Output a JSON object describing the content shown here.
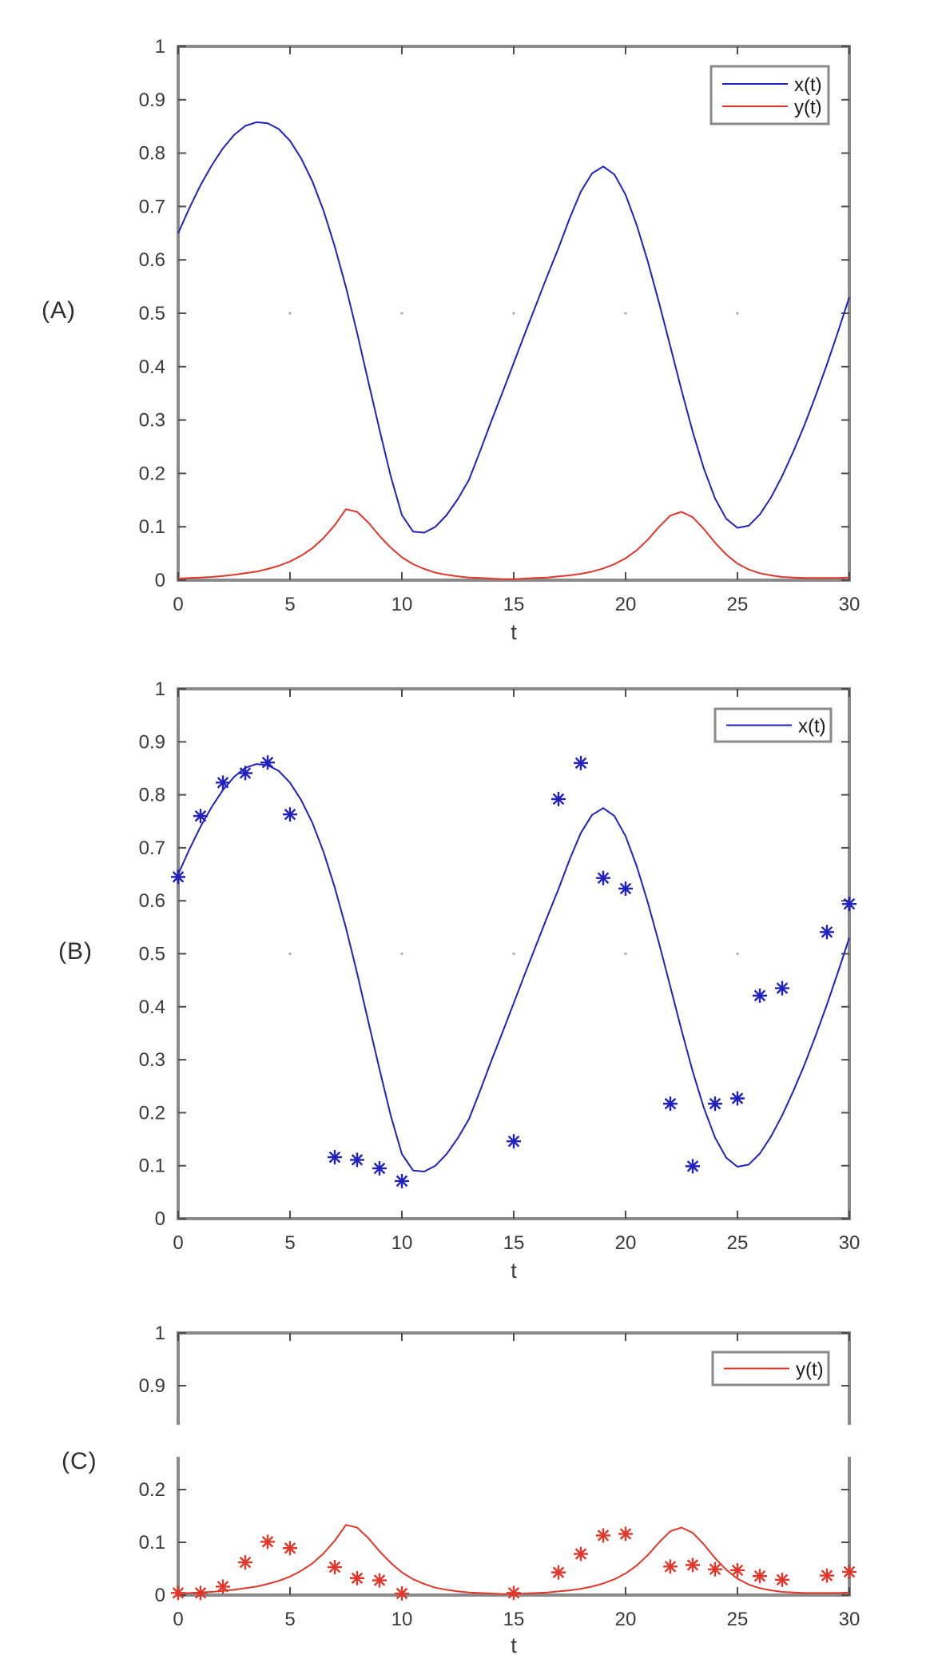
{
  "figure": {
    "background": "#ffffff",
    "axis_color": "#8a8a8a",
    "tick_color": "#4d4d4d",
    "text_color": "#3a3a3a",
    "grid_dot_color": "#a8a8a8",
    "blue": "#2121bd",
    "red": "#e1372a"
  },
  "panels": [
    {
      "label": "(A)"
    },
    {
      "label": "(B)"
    },
    {
      "label": "(C)"
    }
  ],
  "chart_data": [
    {
      "id": "A",
      "type": "line",
      "title": "",
      "xlabel": "t",
      "ylabel": "",
      "xlim": [
        0,
        30
      ],
      "ylim": [
        0,
        1
      ],
      "xticks": [
        0,
        5,
        10,
        15,
        20,
        25,
        30
      ],
      "yticks": [
        0,
        0.1,
        0.2,
        0.3,
        0.4,
        0.5,
        0.6,
        0.7,
        0.8,
        0.9,
        1
      ],
      "ytick_labels": [
        "0",
        "0.1",
        "0.2",
        "0.3",
        "0.4",
        "0.5",
        "0.6",
        "0.7",
        "0.8",
        "0.9",
        "1"
      ],
      "grid": "faint-dots-at-y0.5",
      "legend_position": "top-right",
      "legend": [
        {
          "label": "x(t)",
          "color": "#2121bd"
        },
        {
          "label": "y(t)",
          "color": "#e1372a"
        }
      ],
      "series": [
        {
          "name": "x(t)",
          "style": "line",
          "color": "#2121bd",
          "x_start": 0,
          "x_step": 0.5,
          "y": [
            0.65,
            0.697,
            0.74,
            0.777,
            0.809,
            0.834,
            0.851,
            0.858,
            0.856,
            0.845,
            0.823,
            0.79,
            0.747,
            0.692,
            0.625,
            0.549,
            0.463,
            0.372,
            0.282,
            0.195,
            0.122,
            0.091,
            0.089,
            0.1,
            0.122,
            0.152,
            0.188,
            0.242,
            0.298,
            0.352,
            0.407,
            0.462,
            0.516,
            0.57,
            0.622,
            0.678,
            0.728,
            0.762,
            0.775,
            0.76,
            0.722,
            0.665,
            0.596,
            0.519,
            0.438,
            0.356,
            0.278,
            0.209,
            0.153,
            0.115,
            0.098,
            0.102,
            0.123,
            0.155,
            0.195,
            0.241,
            0.291,
            0.346,
            0.404,
            0.466,
            0.53
          ]
        },
        {
          "name": "y(t)",
          "style": "line",
          "color": "#e1372a",
          "x_start": 0,
          "x_step": 0.5,
          "y": [
            0.003,
            0.004,
            0.005,
            0.006,
            0.008,
            0.01,
            0.013,
            0.016,
            0.021,
            0.027,
            0.035,
            0.046,
            0.06,
            0.079,
            0.103,
            0.133,
            0.128,
            0.108,
            0.083,
            0.061,
            0.043,
            0.03,
            0.021,
            0.014,
            0.01,
            0.007,
            0.005,
            0.004,
            0.003,
            0.002,
            0.002,
            0.003,
            0.004,
            0.005,
            0.007,
            0.009,
            0.012,
            0.016,
            0.022,
            0.03,
            0.041,
            0.056,
            0.076,
            0.1,
            0.121,
            0.128,
            0.118,
            0.096,
            0.07,
            0.048,
            0.031,
            0.02,
            0.013,
            0.009,
            0.006,
            0.005,
            0.004,
            0.004,
            0.004,
            0.004,
            0.005
          ]
        }
      ]
    },
    {
      "id": "B",
      "type": "line",
      "title": "",
      "xlabel": "t",
      "ylabel": "",
      "xlim": [
        0,
        30
      ],
      "ylim": [
        0,
        1
      ],
      "xticks": [
        0,
        5,
        10,
        15,
        20,
        25,
        30
      ],
      "yticks": [
        0,
        0.1,
        0.2,
        0.3,
        0.4,
        0.5,
        0.6,
        0.7,
        0.8,
        0.9,
        1
      ],
      "ytick_labels": [
        "0",
        "0.1",
        "0.2",
        "0.3",
        "0.4",
        "0.5",
        "0.6",
        "0.7",
        "0.8",
        "0.9",
        "1"
      ],
      "grid": "faint-dots-at-y0.5",
      "legend_position": "top-right",
      "legend": [
        {
          "label": "x(t)",
          "color": "#2121bd"
        }
      ],
      "series": [
        {
          "name": "x(t)",
          "style": "line",
          "color": "#2121bd",
          "x_start": 0,
          "x_step": 0.5,
          "y": [
            0.65,
            0.697,
            0.74,
            0.777,
            0.809,
            0.834,
            0.851,
            0.858,
            0.856,
            0.845,
            0.823,
            0.79,
            0.747,
            0.692,
            0.625,
            0.549,
            0.463,
            0.372,
            0.282,
            0.195,
            0.122,
            0.091,
            0.089,
            0.1,
            0.122,
            0.152,
            0.188,
            0.242,
            0.298,
            0.352,
            0.407,
            0.462,
            0.516,
            0.57,
            0.622,
            0.678,
            0.728,
            0.762,
            0.775,
            0.76,
            0.722,
            0.665,
            0.596,
            0.519,
            0.438,
            0.356,
            0.278,
            0.209,
            0.153,
            0.115,
            0.098,
            0.102,
            0.123,
            0.155,
            0.195,
            0.241,
            0.291,
            0.346,
            0.404,
            0.466,
            0.53
          ]
        },
        {
          "name": "x(t) data",
          "style": "scatter-asterisk",
          "color": "#2121bd",
          "x": [
            0,
            1,
            2,
            3,
            4,
            5,
            7,
            8,
            9,
            10,
            15,
            17,
            18,
            19,
            20,
            22,
            23,
            24,
            25,
            26,
            27,
            29,
            30
          ],
          "y": [
            0.645,
            0.76,
            0.823,
            0.841,
            0.861,
            0.763,
            0.116,
            0.111,
            0.095,
            0.071,
            0.146,
            0.792,
            0.86,
            0.643,
            0.623,
            0.217,
            0.099,
            0.217,
            0.227,
            0.421,
            0.435,
            0.541,
            0.594
          ]
        }
      ]
    },
    {
      "id": "C",
      "type": "line",
      "title": "",
      "xlabel": "t",
      "ylabel": "",
      "xlim": [
        0,
        30
      ],
      "ylim": [
        0,
        1
      ],
      "broken_y_axis": {
        "lower_range": [
          0,
          0.26
        ],
        "upper_range": [
          0.83,
          1
        ]
      },
      "xticks": [
        0,
        5,
        10,
        15,
        20,
        25,
        30
      ],
      "yticks": [
        0,
        0.1,
        0.2,
        0.9,
        1
      ],
      "ytick_labels": [
        "0",
        "0.1",
        "0.2",
        "0.9",
        "1"
      ],
      "grid": "none",
      "legend_position": "top-right",
      "legend": [
        {
          "label": "y(t)",
          "color": "#e1372a"
        }
      ],
      "series": [
        {
          "name": "y(t)",
          "style": "line",
          "color": "#e1372a",
          "x_start": 0,
          "x_step": 0.5,
          "y": [
            0.003,
            0.004,
            0.005,
            0.006,
            0.008,
            0.01,
            0.013,
            0.016,
            0.021,
            0.027,
            0.035,
            0.046,
            0.06,
            0.079,
            0.103,
            0.133,
            0.128,
            0.108,
            0.083,
            0.061,
            0.043,
            0.03,
            0.021,
            0.014,
            0.01,
            0.007,
            0.005,
            0.004,
            0.003,
            0.002,
            0.002,
            0.003,
            0.004,
            0.005,
            0.007,
            0.009,
            0.012,
            0.016,
            0.022,
            0.03,
            0.041,
            0.056,
            0.076,
            0.1,
            0.121,
            0.128,
            0.118,
            0.096,
            0.07,
            0.048,
            0.031,
            0.02,
            0.013,
            0.009,
            0.006,
            0.005,
            0.004,
            0.004,
            0.004,
            0.004,
            0.005
          ]
        },
        {
          "name": "y(t) data",
          "style": "scatter-asterisk",
          "color": "#e1372a",
          "x": [
            0,
            1,
            2,
            3,
            4,
            5,
            7,
            8,
            9,
            10,
            15,
            17,
            18,
            19,
            20,
            22,
            23,
            24,
            25,
            26,
            27,
            29,
            30
          ],
          "y": [
            0.004,
            0.004,
            0.016,
            0.062,
            0.101,
            0.089,
            0.053,
            0.032,
            0.028,
            0.003,
            0.004,
            0.043,
            0.078,
            0.113,
            0.116,
            0.054,
            0.057,
            0.049,
            0.047,
            0.036,
            0.029,
            0.037,
            0.044
          ]
        }
      ]
    }
  ]
}
